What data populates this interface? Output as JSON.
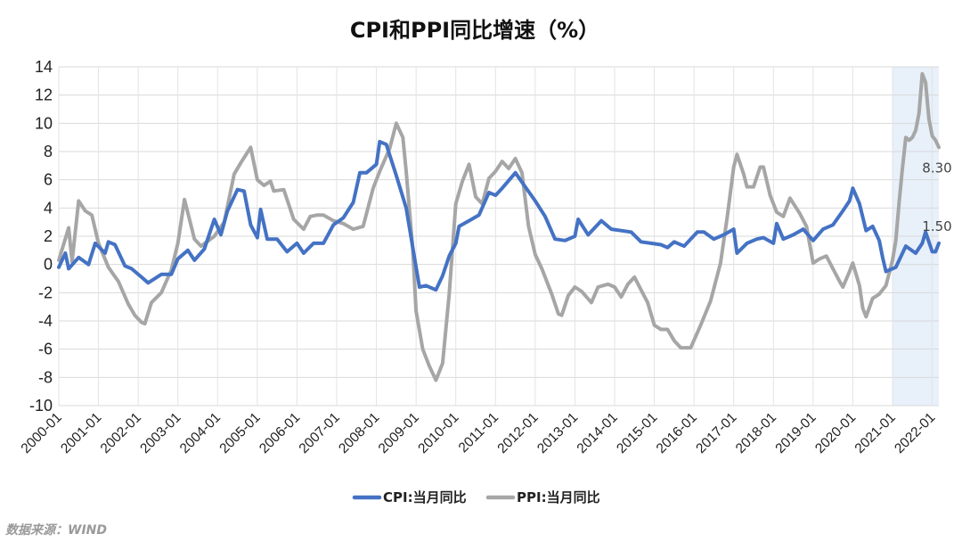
{
  "chart_data": {
    "type": "line",
    "title": "CPI和PPI同比增速（%）",
    "ylim": [
      -10,
      14
    ],
    "yticks": [
      "14",
      "12",
      "10",
      "8",
      "6",
      "4",
      "2",
      "0",
      "-2",
      "-4",
      "-6",
      "-8",
      "-10"
    ],
    "x_start": "2000-01",
    "x_end": "2022-03",
    "xticks": [
      "2000-01",
      "2001-01",
      "2002-01",
      "2003-01",
      "2004-01",
      "2005-01",
      "2006-01",
      "2007-01",
      "2008-01",
      "2009-01",
      "2010-01",
      "2011-01",
      "2012-01",
      "2013-01",
      "2014-01",
      "2015-01",
      "2016-01",
      "2017-01",
      "2018-01",
      "2019-01",
      "2020-01",
      "2021-01",
      "2022-01"
    ],
    "highlight": {
      "from": "2021-01",
      "to": "2022-03",
      "color": "#e8f0fa"
    },
    "grid": true,
    "legend_position": "bottom",
    "series": [
      {
        "name": "CPI:当月同比",
        "color": "#4472c4",
        "end_label": "1.50",
        "points": [
          [
            "2000-01",
            -0.2
          ],
          [
            "2000-03",
            0.8
          ],
          [
            "2000-04",
            -0.3
          ],
          [
            "2000-07",
            0.5
          ],
          [
            "2000-10",
            0.0
          ],
          [
            "2000-12",
            1.5
          ],
          [
            "2001-03",
            0.8
          ],
          [
            "2001-04",
            1.6
          ],
          [
            "2001-06",
            1.4
          ],
          [
            "2001-09",
            -0.1
          ],
          [
            "2001-11",
            -0.3
          ],
          [
            "2002-02",
            -0.9
          ],
          [
            "2002-04",
            -1.3
          ],
          [
            "2002-08",
            -0.7
          ],
          [
            "2002-11",
            -0.7
          ],
          [
            "2003-01",
            0.4
          ],
          [
            "2003-04",
            1.0
          ],
          [
            "2003-06",
            0.3
          ],
          [
            "2003-09",
            1.1
          ],
          [
            "2003-12",
            3.2
          ],
          [
            "2004-02",
            2.1
          ],
          [
            "2004-04",
            3.8
          ],
          [
            "2004-07",
            5.3
          ],
          [
            "2004-09",
            5.2
          ],
          [
            "2004-11",
            2.8
          ],
          [
            "2005-01",
            1.9
          ],
          [
            "2005-02",
            3.9
          ],
          [
            "2005-04",
            1.8
          ],
          [
            "2005-07",
            1.8
          ],
          [
            "2005-10",
            0.9
          ],
          [
            "2006-01",
            1.5
          ],
          [
            "2006-03",
            0.8
          ],
          [
            "2006-06",
            1.5
          ],
          [
            "2006-09",
            1.5
          ],
          [
            "2006-12",
            2.8
          ],
          [
            "2007-03",
            3.3
          ],
          [
            "2007-06",
            4.4
          ],
          [
            "2007-08",
            6.5
          ],
          [
            "2007-10",
            6.5
          ],
          [
            "2008-01",
            7.1
          ],
          [
            "2008-02",
            8.7
          ],
          [
            "2008-04",
            8.5
          ],
          [
            "2008-07",
            6.3
          ],
          [
            "2008-10",
            4.0
          ],
          [
            "2008-12",
            1.2
          ],
          [
            "2009-02",
            -1.6
          ],
          [
            "2009-04",
            -1.5
          ],
          [
            "2009-07",
            -1.8
          ],
          [
            "2009-09",
            -0.8
          ],
          [
            "2009-11",
            0.6
          ],
          [
            "2010-01",
            1.5
          ],
          [
            "2010-02",
            2.7
          ],
          [
            "2010-05",
            3.1
          ],
          [
            "2010-08",
            3.5
          ],
          [
            "2010-11",
            5.1
          ],
          [
            "2011-01",
            4.9
          ],
          [
            "2011-03",
            5.4
          ],
          [
            "2011-07",
            6.5
          ],
          [
            "2011-10",
            5.5
          ],
          [
            "2012-01",
            4.5
          ],
          [
            "2012-04",
            3.4
          ],
          [
            "2012-07",
            1.8
          ],
          [
            "2012-10",
            1.7
          ],
          [
            "2013-01",
            2.0
          ],
          [
            "2013-02",
            3.2
          ],
          [
            "2013-05",
            2.1
          ],
          [
            "2013-09",
            3.1
          ],
          [
            "2013-12",
            2.5
          ],
          [
            "2014-03",
            2.4
          ],
          [
            "2014-06",
            2.3
          ],
          [
            "2014-09",
            1.6
          ],
          [
            "2014-12",
            1.5
          ],
          [
            "2015-03",
            1.4
          ],
          [
            "2015-05",
            1.2
          ],
          [
            "2015-07",
            1.6
          ],
          [
            "2015-10",
            1.3
          ],
          [
            "2016-02",
            2.3
          ],
          [
            "2016-04",
            2.3
          ],
          [
            "2016-07",
            1.8
          ],
          [
            "2016-10",
            2.1
          ],
          [
            "2017-01",
            2.5
          ],
          [
            "2017-02",
            0.8
          ],
          [
            "2017-05",
            1.5
          ],
          [
            "2017-08",
            1.8
          ],
          [
            "2017-10",
            1.9
          ],
          [
            "2018-01",
            1.5
          ],
          [
            "2018-02",
            2.9
          ],
          [
            "2018-04",
            1.8
          ],
          [
            "2018-07",
            2.1
          ],
          [
            "2018-10",
            2.5
          ],
          [
            "2019-01",
            1.7
          ],
          [
            "2019-04",
            2.5
          ],
          [
            "2019-07",
            2.8
          ],
          [
            "2019-10",
            3.8
          ],
          [
            "2019-12",
            4.5
          ],
          [
            "2020-01",
            5.4
          ],
          [
            "2020-03",
            4.3
          ],
          [
            "2020-05",
            2.4
          ],
          [
            "2020-07",
            2.7
          ],
          [
            "2020-09",
            1.7
          ],
          [
            "2020-10",
            0.5
          ],
          [
            "2020-11",
            -0.5
          ],
          [
            "2021-01",
            -0.3
          ],
          [
            "2021-02",
            -0.2
          ],
          [
            "2021-05",
            1.3
          ],
          [
            "2021-08",
            0.8
          ],
          [
            "2021-10",
            1.5
          ],
          [
            "2021-11",
            2.3
          ],
          [
            "2022-01",
            0.9
          ],
          [
            "2022-02",
            0.9
          ],
          [
            "2022-03",
            1.5
          ]
        ]
      },
      {
        "name": "PPI:当月同比",
        "color": "#a6a6a6",
        "end_label": "8.30",
        "points": [
          [
            "2000-01",
            0.3
          ],
          [
            "2000-04",
            2.6
          ],
          [
            "2000-05",
            0.2
          ],
          [
            "2000-07",
            4.5
          ],
          [
            "2000-09",
            3.8
          ],
          [
            "2000-11",
            3.5
          ],
          [
            "2001-01",
            1.5
          ],
          [
            "2001-04",
            -0.2
          ],
          [
            "2001-07",
            -1.2
          ],
          [
            "2001-10",
            -2.8
          ],
          [
            "2001-12",
            -3.6
          ],
          [
            "2002-02",
            -4.1
          ],
          [
            "2002-03",
            -4.2
          ],
          [
            "2002-05",
            -2.7
          ],
          [
            "2002-08",
            -2.0
          ],
          [
            "2002-11",
            -0.4
          ],
          [
            "2003-01",
            1.5
          ],
          [
            "2003-03",
            4.6
          ],
          [
            "2003-06",
            1.8
          ],
          [
            "2003-08",
            1.3
          ],
          [
            "2003-12",
            2.0
          ],
          [
            "2004-03",
            3.0
          ],
          [
            "2004-06",
            6.4
          ],
          [
            "2004-08",
            7.2
          ],
          [
            "2004-11",
            8.3
          ],
          [
            "2005-01",
            6.0
          ],
          [
            "2005-03",
            5.6
          ],
          [
            "2005-05",
            5.9
          ],
          [
            "2005-06",
            5.2
          ],
          [
            "2005-09",
            5.3
          ],
          [
            "2005-12",
            3.2
          ],
          [
            "2006-03",
            2.5
          ],
          [
            "2006-05",
            3.4
          ],
          [
            "2006-07",
            3.5
          ],
          [
            "2006-09",
            3.5
          ],
          [
            "2006-12",
            3.1
          ],
          [
            "2007-03",
            2.9
          ],
          [
            "2007-06",
            2.5
          ],
          [
            "2007-09",
            2.7
          ],
          [
            "2007-12",
            5.4
          ],
          [
            "2008-02",
            6.6
          ],
          [
            "2008-05",
            8.2
          ],
          [
            "2008-07",
            10.0
          ],
          [
            "2008-09",
            9.0
          ],
          [
            "2008-10",
            6.6
          ],
          [
            "2008-12",
            1.1
          ],
          [
            "2009-01",
            -3.3
          ],
          [
            "2009-03",
            -6.0
          ],
          [
            "2009-05",
            -7.2
          ],
          [
            "2009-07",
            -8.2
          ],
          [
            "2009-09",
            -7.0
          ],
          [
            "2009-11",
            -2.1
          ],
          [
            "2010-01",
            4.3
          ],
          [
            "2010-03",
            5.9
          ],
          [
            "2010-05",
            7.1
          ],
          [
            "2010-07",
            4.8
          ],
          [
            "2010-09",
            4.3
          ],
          [
            "2010-11",
            6.1
          ],
          [
            "2011-01",
            6.6
          ],
          [
            "2011-03",
            7.3
          ],
          [
            "2011-05",
            6.8
          ],
          [
            "2011-07",
            7.5
          ],
          [
            "2011-09",
            6.5
          ],
          [
            "2011-11",
            2.7
          ],
          [
            "2012-01",
            0.7
          ],
          [
            "2012-03",
            -0.3
          ],
          [
            "2012-06",
            -2.1
          ],
          [
            "2012-08",
            -3.5
          ],
          [
            "2012-09",
            -3.6
          ],
          [
            "2012-11",
            -2.2
          ],
          [
            "2013-01",
            -1.6
          ],
          [
            "2013-03",
            -1.9
          ],
          [
            "2013-06",
            -2.7
          ],
          [
            "2013-08",
            -1.6
          ],
          [
            "2013-11",
            -1.4
          ],
          [
            "2014-01",
            -1.6
          ],
          [
            "2014-03",
            -2.3
          ],
          [
            "2014-05",
            -1.4
          ],
          [
            "2014-07",
            -0.9
          ],
          [
            "2014-09",
            -1.8
          ],
          [
            "2014-11",
            -2.7
          ],
          [
            "2015-01",
            -4.3
          ],
          [
            "2015-03",
            -4.6
          ],
          [
            "2015-05",
            -4.6
          ],
          [
            "2015-07",
            -5.4
          ],
          [
            "2015-09",
            -5.9
          ],
          [
            "2015-12",
            -5.9
          ],
          [
            "2016-03",
            -4.3
          ],
          [
            "2016-06",
            -2.6
          ],
          [
            "2016-09",
            0.1
          ],
          [
            "2016-11",
            3.3
          ],
          [
            "2017-01",
            6.9
          ],
          [
            "2017-02",
            7.8
          ],
          [
            "2017-04",
            6.4
          ],
          [
            "2017-05",
            5.5
          ],
          [
            "2017-07",
            5.5
          ],
          [
            "2017-09",
            6.9
          ],
          [
            "2017-10",
            6.9
          ],
          [
            "2017-12",
            4.9
          ],
          [
            "2018-02",
            3.7
          ],
          [
            "2018-04",
            3.4
          ],
          [
            "2018-06",
            4.7
          ],
          [
            "2018-09",
            3.6
          ],
          [
            "2018-11",
            2.7
          ],
          [
            "2019-01",
            0.1
          ],
          [
            "2019-03",
            0.4
          ],
          [
            "2019-05",
            0.6
          ],
          [
            "2019-07",
            -0.3
          ],
          [
            "2019-09",
            -1.2
          ],
          [
            "2019-10",
            -1.6
          ],
          [
            "2019-12",
            -0.5
          ],
          [
            "2020-01",
            0.1
          ],
          [
            "2020-03",
            -1.5
          ],
          [
            "2020-04",
            -3.1
          ],
          [
            "2020-05",
            -3.7
          ],
          [
            "2020-07",
            -2.4
          ],
          [
            "2020-09",
            -2.1
          ],
          [
            "2020-11",
            -1.5
          ],
          [
            "2021-01",
            0.3
          ],
          [
            "2021-02",
            1.7
          ],
          [
            "2021-03",
            4.4
          ],
          [
            "2021-04",
            6.8
          ],
          [
            "2021-05",
            9.0
          ],
          [
            "2021-06",
            8.8
          ],
          [
            "2021-07",
            9.0
          ],
          [
            "2021-08",
            9.5
          ],
          [
            "2021-09",
            10.7
          ],
          [
            "2021-10",
            13.5
          ],
          [
            "2021-11",
            12.9
          ],
          [
            "2021-12",
            10.3
          ],
          [
            "2022-01",
            9.1
          ],
          [
            "2022-02",
            8.8
          ],
          [
            "2022-03",
            8.3
          ]
        ]
      }
    ]
  },
  "source": "数据来源：WIND"
}
